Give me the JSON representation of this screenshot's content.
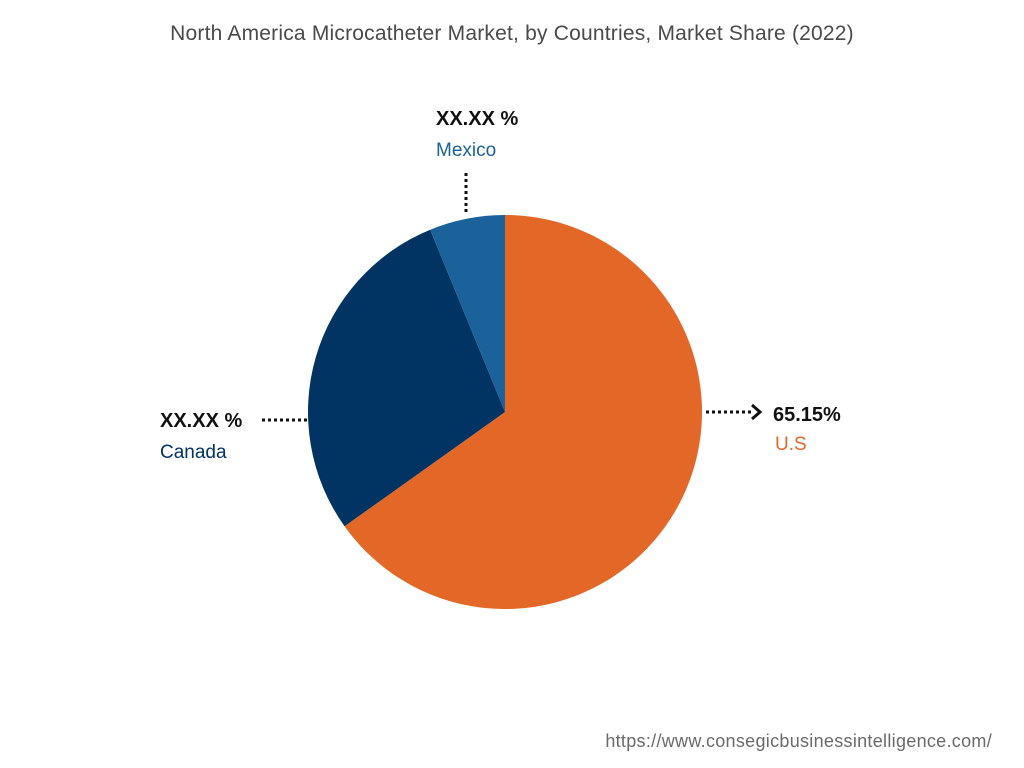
{
  "chart_data": {
    "type": "pie",
    "title": "North America Microcatheter Market, by Countries, Market Share (2022)",
    "slices": [
      {
        "label": "U.S",
        "value_label": "65.15%",
        "share": 65.15,
        "color": "#e36726"
      },
      {
        "label": "Canada",
        "value_label": "XX.XX %",
        "share": 28.65,
        "color": "#013363"
      },
      {
        "label": "Mexico",
        "value_label": "XX.XX %",
        "share": 6.2,
        "color": "#1a6299"
      }
    ]
  },
  "footer": {
    "source_url": "https://www.consegicbusinessintelligence.com/"
  }
}
